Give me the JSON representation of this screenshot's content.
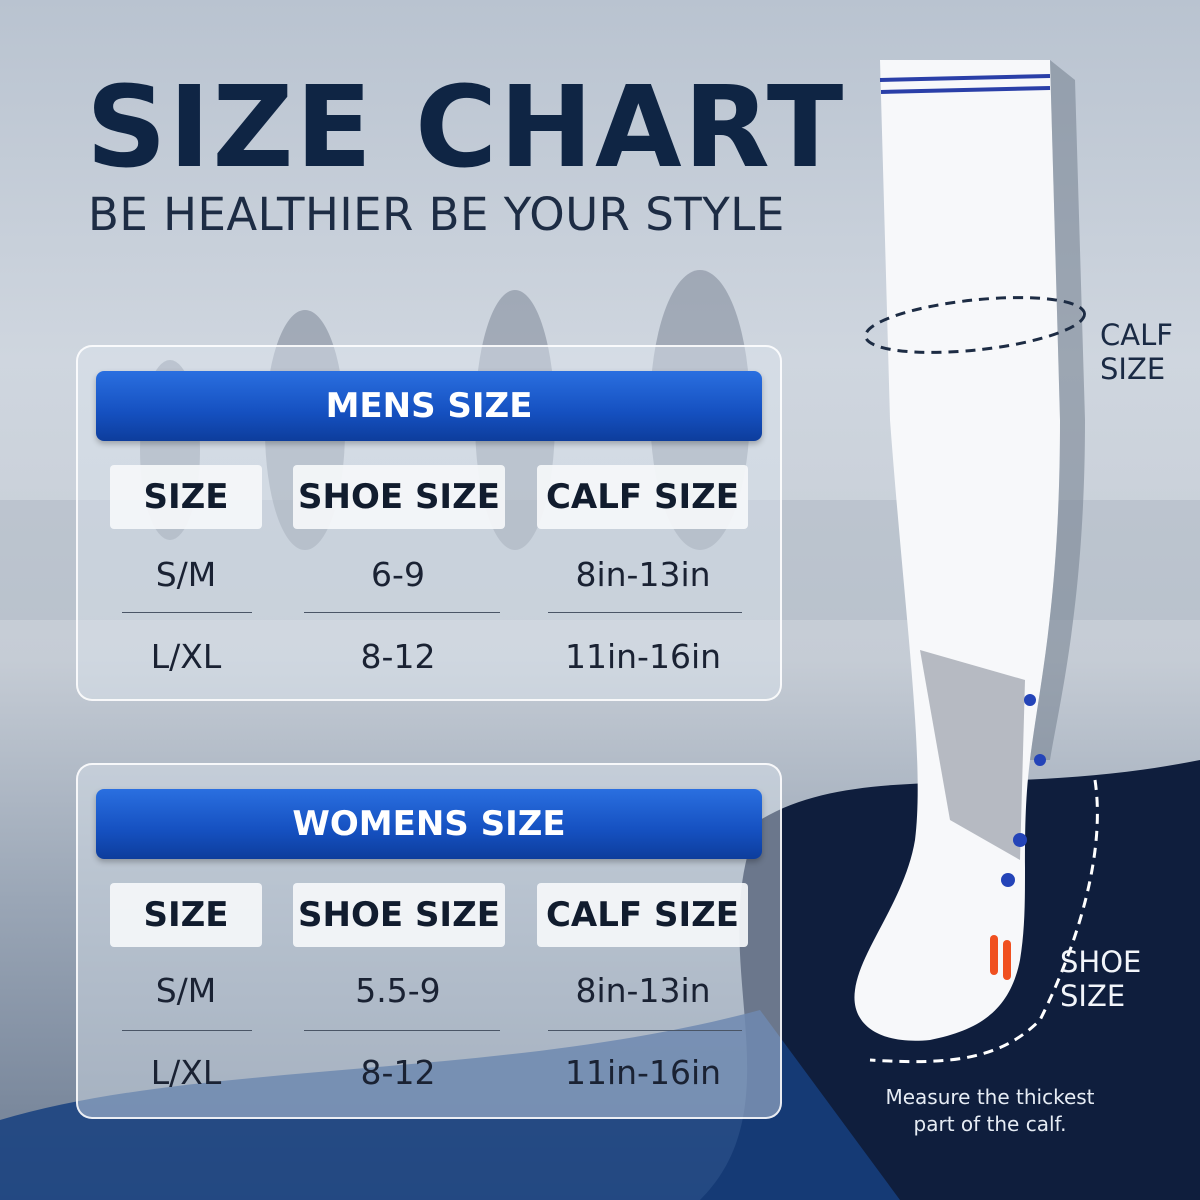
{
  "title": "SIZE CHART",
  "subtitle": "BE HEALTHIER BE YOUR STYLE",
  "tables": [
    {
      "header": "MENS SIZE",
      "columns": [
        "SIZE",
        "SHOE SIZE",
        "CALF SIZE"
      ],
      "rows": [
        [
          "S/M",
          "6-9",
          "8in-13in"
        ],
        [
          "L/XL",
          "8-12",
          "11in-16in"
        ]
      ]
    },
    {
      "header": "WOMENS SIZE",
      "columns": [
        "SIZE",
        "SHOE SIZE",
        "CALF SIZE"
      ],
      "rows": [
        [
          "S/M",
          "5.5-9",
          "8in-13in"
        ],
        [
          "L/XL",
          "8-12",
          "11in-16in"
        ]
      ]
    }
  ],
  "annotations": {
    "calf_line1": "CALF",
    "calf_line2": "SIZE",
    "shoe_line1": "SHOE",
    "shoe_line2": "SIZE",
    "note_line1": "Measure the thickest",
    "note_line2": "part of the calf."
  },
  "colors": {
    "title": "#0f2544",
    "header_bar": "#1550c0",
    "navy": "#0f1e3d"
  }
}
